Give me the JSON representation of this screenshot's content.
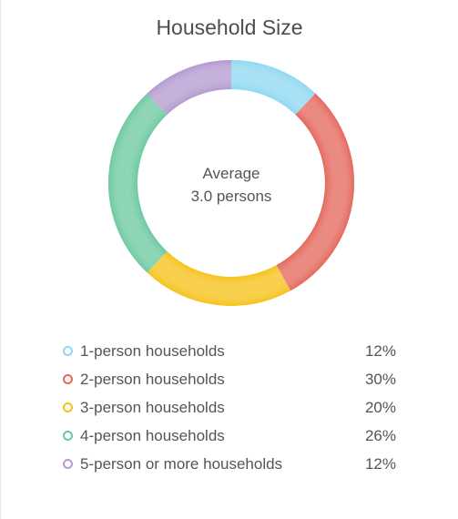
{
  "chart_data": {
    "type": "pie",
    "title": "Household Size",
    "center_text": {
      "line1": "Average",
      "line2": "3.0 persons"
    },
    "slices": [
      {
        "label": "1-person households",
        "value": 12,
        "value_label": "12%",
        "color": "#8fd8f2"
      },
      {
        "label": "2-person households",
        "value": 30,
        "value_label": "30%",
        "color": "#e4685c"
      },
      {
        "label": "3-person households",
        "value": 20,
        "value_label": "20%",
        "color": "#f6c21a"
      },
      {
        "label": "4-person households",
        "value": 26,
        "value_label": "26%",
        "color": "#6cc9a0"
      },
      {
        "label": "5-person or more households",
        "value": 12,
        "value_label": "12%",
        "color": "#b49ad0"
      }
    ]
  }
}
